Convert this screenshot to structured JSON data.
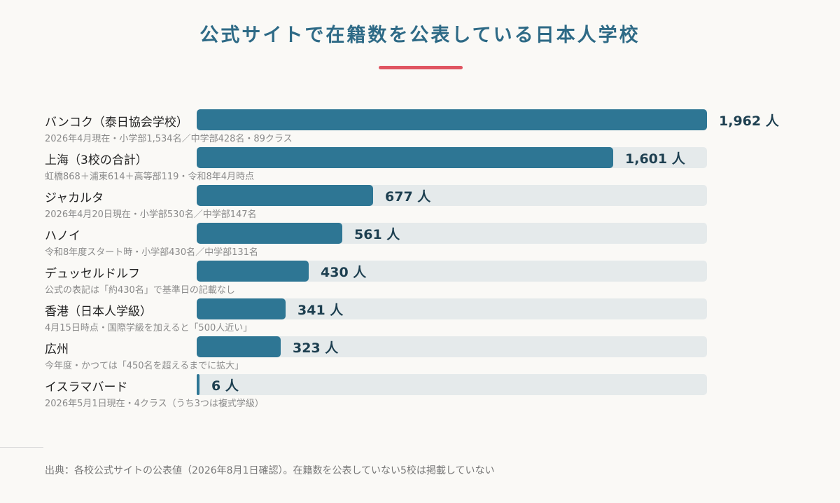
{
  "title": "公式サイトで在籍数を公表している日本人学校",
  "unit": "人",
  "colors": {
    "title": "#2e6a86",
    "accent": "#e05561",
    "bar": "#2e7694",
    "track": "#e5eaeb"
  },
  "chart_data": {
    "type": "bar",
    "orientation": "horizontal",
    "categories": [
      "バンコク（泰日協会学校）",
      "上海（3校の合計）",
      "ジャカルタ",
      "ハノイ",
      "デュッセルドルフ",
      "香港（日本人学級）",
      "広州",
      "イスラマバード"
    ],
    "values": [
      1962,
      1601,
      677,
      561,
      430,
      341,
      323,
      6
    ],
    "value_labels": [
      "1,962",
      "1,601",
      "677",
      "561",
      "430",
      "341",
      "323",
      "6"
    ],
    "notes": [
      "2026年4月現在・小学部1,534名／中学部428名・89クラス",
      "虹橋868＋浦東614＋高等部119・令和8年4月時点",
      "2026年4月20日現在・小学部530名／中学部147名",
      "令和8年度スタート時・小学部430名／中学部131名",
      "公式の表記は「約430名」で基準日の記載なし",
      "4月15日時点・国際学級を加えると「500人近い」",
      "今年度・かつては「450名を超えるまでに拡大」",
      "2026年5月1日現在・4クラス（うち3つは複式学級）"
    ],
    "xlim": [
      0,
      1962
    ],
    "grid": false,
    "legend": "none"
  },
  "source": "出典：各校公式サイトの公表値（2026年8月1日確認）。在籍数を公表していない5校は掲載していない"
}
